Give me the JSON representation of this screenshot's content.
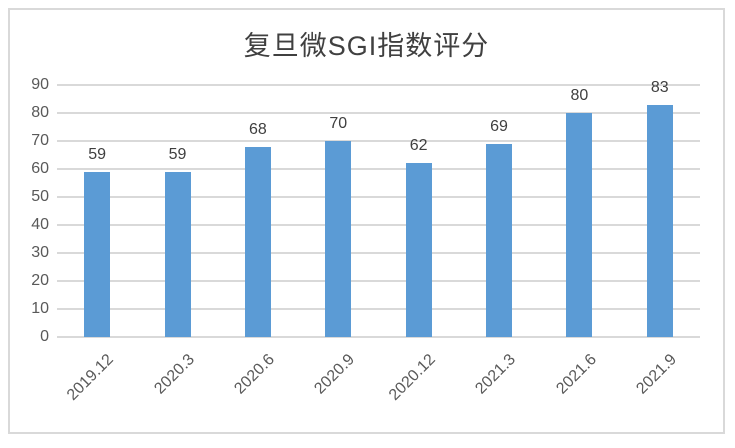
{
  "chart_data": {
    "type": "bar",
    "title": "复旦微SGI指数评分",
    "categories": [
      "2019.12",
      "2020.3",
      "2020.6",
      "2020.9",
      "2020.12",
      "2021.3",
      "2021.6",
      "2021.9"
    ],
    "values": [
      59,
      59,
      68,
      70,
      62,
      69,
      80,
      83
    ],
    "ylim": [
      0,
      90
    ],
    "yticks": [
      0,
      10,
      20,
      30,
      40,
      50,
      60,
      70,
      80,
      90
    ],
    "grid": true,
    "legend_position": "none",
    "data_labels": true,
    "x_tick_rotation_deg": -45,
    "xlabel": "",
    "ylabel": ""
  },
  "style": {
    "bar_color": "#5b9bd5",
    "gridline_color": "#d9d9d9",
    "frame_border_color": "#d9d9d9",
    "title_color": "#404040",
    "axis_label_color": "#595959",
    "data_label_color": "#3f3f3f",
    "background_color": "#ffffff"
  }
}
